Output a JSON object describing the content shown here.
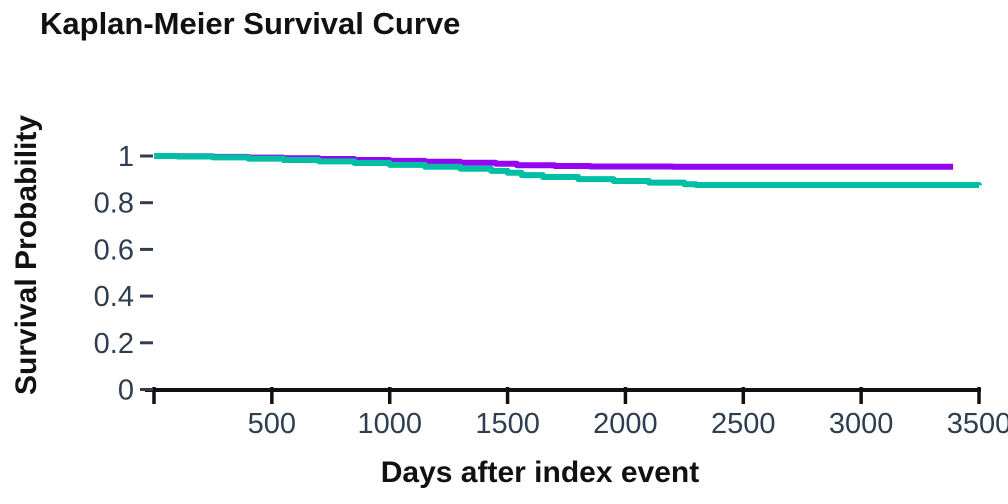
{
  "title": "Kaplan-Meier Survival Curve",
  "chart_data": {
    "type": "line",
    "subtype": "kaplan-meier-step",
    "title": "Kaplan-Meier Survival Curve",
    "xlabel": "Days after index event",
    "ylabel": "Survival Probability",
    "xlim": [
      0,
      3500
    ],
    "ylim": [
      0,
      1
    ],
    "x_ticks": [
      0,
      500,
      1000,
      1500,
      2000,
      2500,
      3000,
      3500
    ],
    "x_tick_labels": [
      "",
      "500",
      "1000",
      "1500",
      "2000",
      "2500",
      "3000",
      "3500"
    ],
    "y_ticks": [
      0,
      0.2,
      0.4,
      0.6,
      0.8,
      1
    ],
    "y_tick_labels": [
      "0",
      "0.2",
      "0.4",
      "0.6",
      "0.8",
      "1"
    ],
    "grid": false,
    "legend_position": "none",
    "colors": {
      "axis": "#111111",
      "tick_label": "#2f3e4e",
      "background": "#ffffff"
    },
    "series": [
      {
        "name": "group-1-purple",
        "color": "#9405f2",
        "points": [
          [
            0,
            1.0
          ],
          [
            100,
            0.999
          ],
          [
            250,
            0.996
          ],
          [
            400,
            0.993
          ],
          [
            550,
            0.99
          ],
          [
            700,
            0.987
          ],
          [
            850,
            0.983
          ],
          [
            1000,
            0.979
          ],
          [
            1150,
            0.975
          ],
          [
            1300,
            0.971
          ],
          [
            1450,
            0.967
          ],
          [
            1540,
            0.96
          ],
          [
            1700,
            0.957
          ],
          [
            1850,
            0.955
          ],
          [
            2200,
            0.954
          ],
          [
            3390,
            0.954
          ]
        ]
      },
      {
        "name": "group-2-teal",
        "color": "#00bfa5",
        "points": [
          [
            0,
            1.0
          ],
          [
            100,
            0.998
          ],
          [
            250,
            0.994
          ],
          [
            400,
            0.989
          ],
          [
            550,
            0.983
          ],
          [
            700,
            0.977
          ],
          [
            850,
            0.97
          ],
          [
            1000,
            0.962
          ],
          [
            1150,
            0.954
          ],
          [
            1300,
            0.945
          ],
          [
            1430,
            0.936
          ],
          [
            1500,
            0.928
          ],
          [
            1560,
            0.918
          ],
          [
            1650,
            0.91
          ],
          [
            1800,
            0.901
          ],
          [
            1950,
            0.893
          ],
          [
            2100,
            0.886
          ],
          [
            2250,
            0.879
          ],
          [
            2300,
            0.876
          ],
          [
            3500,
            0.875
          ]
        ]
      }
    ]
  }
}
